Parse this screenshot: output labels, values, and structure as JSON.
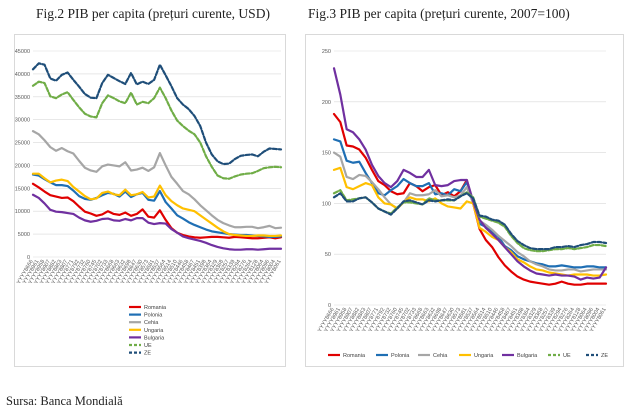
{
  "captions": {
    "fig2": "Fig.2 PIB per capita (prețuri curente, USD)",
    "fig3": "Fig.3 PIB per capita (prețuri curente, 2007=100)"
  },
  "source": "Sursa: Banca Mondială",
  "colors": {
    "Romania": "#e00000",
    "Polonia": "#1f6fb4",
    "Cehia": "#a6a6a6",
    "Ungaria": "#ffc000",
    "Bulgaria": "#7030a0",
    "UE": "#70ad47",
    "ZE": "#1f4e79"
  },
  "chart_data": [
    {
      "type": "line",
      "title": "Fig.2 PIB per capita (prețuri curente, USD)",
      "ylim": [
        0,
        45000
      ],
      "yticks": [
        "0",
        "5000",
        "10000",
        "15000",
        "20000",
        "25000",
        "30000",
        "35000",
        "40000",
        "45000"
      ],
      "x": [
        "YYYY8666",
        "YYYY8961",
        "YYYY8958",
        "YYYY8907",
        "YYYY8882",
        "YYYY8863",
        "YYYY8807",
        "YYYY8771",
        "YYYY8792",
        "YYYY8732",
        "YYYY8760",
        "YYYY8745",
        "YYYY8702",
        "YYYY8733",
        "YYYY8668",
        "YYYY8663",
        "YYYY8632",
        "YYYY8698",
        "YYYY8647",
        "YYYY8630",
        "YYYY8573",
        "YYYY8581",
        "YYYY8537",
        "YYYY8564",
        "YYYY8514",
        "YYYY8510",
        "YYYY8446",
        "YYYY8458",
        "YYYY8467",
        "YYYY8451",
        "YYYY8398",
        "YYYY8364",
        "YYYY8329",
        "YYYY8368",
        "YYYY8257",
        "YYYY8339",
        "YYYY8294",
        "YYYY8276",
        "YYYY8264",
        "YYYY8128",
        "YYYY8064",
        "YYYY8096",
        "YYYY8004",
        "YYYY8061"
      ],
      "series": [
        {
          "name": "Romania",
          "values": [
            16000,
            15200,
            14300,
            13500,
            13200,
            12900,
            13000,
            12200,
            11000,
            9900,
            9500,
            9000,
            9300,
            10000,
            9400,
            9200,
            9700,
            9000,
            9400,
            10400,
            8800,
            8600,
            10200,
            8100,
            6300,
            5300,
            4800,
            4500,
            4300,
            4200,
            4300,
            4400,
            4400,
            4300,
            4200,
            4400,
            4300,
            4200,
            4100,
            4100,
            4200,
            4300,
            4100,
            4300
          ]
        },
        {
          "name": "Polonia",
          "values": [
            18000,
            17800,
            17000,
            16300,
            15700,
            15700,
            15500,
            14500,
            13300,
            12700,
            12500,
            12900,
            13500,
            14000,
            13800,
            13200,
            14300,
            13100,
            13700,
            14000,
            12500,
            12300,
            14400,
            12000,
            10600,
            9100,
            8400,
            7600,
            7000,
            6500,
            6000,
            5600,
            5400,
            5200,
            5000,
            4900,
            4800,
            4800,
            4700,
            4600,
            4500,
            4400,
            4400,
            4500
          ]
        },
        {
          "name": "Cehia",
          "values": [
            27500,
            26800,
            25500,
            24000,
            23200,
            23800,
            23100,
            22600,
            21000,
            19500,
            18900,
            18600,
            19800,
            20200,
            20000,
            19800,
            20700,
            18900,
            19100,
            19500,
            18800,
            19600,
            22700,
            20000,
            17500,
            16000,
            14400,
            13700,
            12600,
            11300,
            10200,
            9100,
            8100,
            7400,
            6900,
            6500,
            6500,
            6600,
            6600,
            6300,
            6500,
            6800,
            6300,
            6400
          ]
        },
        {
          "name": "Ungaria",
          "values": [
            18200,
            18200,
            17200,
            16300,
            16700,
            16900,
            16600,
            15300,
            14300,
            13300,
            12600,
            12800,
            14000,
            14300,
            13700,
            13500,
            14700,
            13500,
            13700,
            14200,
            13000,
            13200,
            15600,
            13500,
            12200,
            11300,
            10600,
            10300,
            10000,
            9100,
            8200,
            7300,
            6400,
            5600,
            5000,
            4800,
            4700,
            4600,
            4600,
            4700,
            4700,
            4600,
            4600,
            4700
          ]
        },
        {
          "name": "Bulgaria",
          "values": [
            13600,
            12900,
            11700,
            10300,
            9900,
            9800,
            9600,
            9400,
            8600,
            8000,
            7700,
            7900,
            8300,
            8400,
            8000,
            7900,
            8300,
            8000,
            8500,
            8500,
            7500,
            7200,
            7400,
            7300,
            6100,
            5300,
            4500,
            4100,
            3800,
            3500,
            3100,
            2600,
            2200,
            1900,
            1700,
            1600,
            1600,
            1700,
            1700,
            1600,
            1700,
            1800,
            1800,
            1800
          ]
        },
        {
          "name": "UE",
          "values": [
            37400,
            38300,
            38000,
            35100,
            34700,
            35500,
            36000,
            34300,
            32700,
            31300,
            30700,
            30500,
            33600,
            35300,
            34700,
            34000,
            33600,
            35900,
            33300,
            33900,
            33600,
            34700,
            37000,
            34700,
            32000,
            29800,
            28600,
            27600,
            26800,
            25000,
            22000,
            19700,
            17800,
            17200,
            17100,
            17600,
            18000,
            18200,
            18300,
            18800,
            19400,
            19600,
            19700,
            19600
          ]
        },
        {
          "name": "ZE",
          "values": [
            41000,
            42300,
            42000,
            39000,
            38500,
            39800,
            40300,
            38700,
            37200,
            35600,
            34800,
            34700,
            38000,
            39800,
            39100,
            38400,
            37800,
            40200,
            37700,
            38300,
            37800,
            38700,
            42000,
            39700,
            37300,
            34700,
            33300,
            32300,
            30800,
            28600,
            25000,
            22400,
            20900,
            20300,
            20400,
            21400,
            22100,
            22300,
            22400,
            22000,
            23000,
            23700,
            23600,
            23500
          ]
        }
      ],
      "legend": [
        "Romania",
        "Polonia",
        "Cehia",
        "Ungaria",
        "Bulgaria",
        "UE",
        "ZE"
      ],
      "legend_position": "bottom"
    },
    {
      "type": "line",
      "title": "Fig.3 PIB per capita (prețuri curente, 2007=100)",
      "ylim": [
        0,
        250
      ],
      "yticks": [
        "0",
        "50",
        "100",
        "150",
        "200",
        "250"
      ],
      "x": [
        "YYYY8666",
        "YYYY8961",
        "YYYY8958",
        "YYYY8907",
        "YYYY8882",
        "YYYY8863",
        "YYYY8807",
        "YYYY8771",
        "YYYY8792",
        "YYYY8732",
        "YYYY8760",
        "YYYY8745",
        "YYYY8702",
        "YYYY8733",
        "YYYY8668",
        "YYYY8663",
        "YYYY8632",
        "YYYY8698",
        "YYYY8647",
        "YYYY8630",
        "YYYY8573",
        "YYYY8581",
        "YYYY8537",
        "YYYY8564",
        "YYYY8514",
        "YYYY8510",
        "YYYY8446",
        "YYYY8458",
        "YYYY8467",
        "YYYY8451",
        "YYYY8398",
        "YYYY8364",
        "YYYY8329",
        "YYYY8368",
        "YYYY8257",
        "YYYY8339",
        "YYYY8294",
        "YYYY8276",
        "YYYY8264",
        "YYYY8128",
        "YYYY8064",
        "YYYY8096",
        "YYYY8004",
        "YYYY8061"
      ],
      "series": [
        {
          "name": "Romania",
          "values": [
            188,
            180,
            157,
            156,
            153,
            145,
            133,
            122,
            118,
            112,
            109,
            110,
            120,
            117,
            112,
            116,
            118,
            108,
            111,
            107,
            112,
            123,
            100,
            75,
            64,
            57,
            47,
            39,
            33,
            28,
            25,
            23,
            22,
            21,
            20,
            21,
            23,
            21,
            20,
            20,
            21,
            21,
            21,
            21
          ]
        },
        {
          "name": "Polonia",
          "values": [
            163,
            161,
            142,
            140,
            141,
            130,
            120,
            110,
            108,
            113,
            117,
            124,
            120,
            117,
            117,
            120,
            109,
            110,
            108,
            114,
            112,
            121,
            100,
            80,
            77,
            72,
            67,
            58,
            54,
            48,
            45,
            43,
            41,
            40,
            38,
            38,
            39,
            38,
            37,
            37,
            38,
            38,
            37,
            37
          ]
        },
        {
          "name": "Cehia",
          "values": [
            150,
            146,
            126,
            124,
            128,
            127,
            121,
            114,
            106,
            99,
            95,
            101,
            110,
            108,
            108,
            109,
            113,
            107,
            108,
            106,
            108,
            116,
            100,
            83,
            79,
            74,
            68,
            63,
            58,
            52,
            48,
            43,
            40,
            38,
            35,
            34,
            34,
            35,
            35,
            33,
            34,
            35,
            35,
            35
          ]
        },
        {
          "name": "Ungaria",
          "values": [
            133,
            135,
            116,
            114,
            117,
            120,
            118,
            106,
            100,
            99,
            95,
            101,
            106,
            104,
            104,
            102,
            105,
            100,
            97,
            96,
            95,
            102,
            100,
            76,
            72,
            67,
            64,
            57,
            52,
            45,
            42,
            38,
            35,
            34,
            32,
            31,
            30,
            29,
            30,
            30,
            30,
            29,
            29,
            30
          ]
        },
        {
          "name": "Bulgaria",
          "values": [
            233,
            207,
            173,
            170,
            163,
            153,
            138,
            127,
            120,
            116,
            122,
            133,
            130,
            126,
            126,
            133,
            118,
            117,
            118,
            122,
            123,
            123,
            102,
            84,
            76,
            70,
            64,
            57,
            50,
            43,
            38,
            34,
            31,
            30,
            29,
            30,
            29,
            29,
            28,
            25,
            27,
            26,
            27,
            37
          ]
        },
        {
          "name": "UE",
          "values": [
            110,
            113,
            103,
            104,
            105,
            106,
            101,
            95,
            92,
            90,
            96,
            101,
            101,
            100,
            99,
            105,
            103,
            103,
            103,
            103,
            107,
            111,
            106,
            87,
            85,
            83,
            81,
            77,
            68,
            61,
            56,
            54,
            53,
            53,
            54,
            55,
            55,
            56,
            55,
            56,
            57,
            59,
            59,
            58
          ]
        },
        {
          "name": "ZE",
          "values": [
            106,
            110,
            102,
            102,
            105,
            106,
            101,
            95,
            92,
            89,
            95,
            102,
            103,
            101,
            99,
            103,
            102,
            103,
            104,
            103,
            107,
            110,
            105,
            88,
            87,
            84,
            83,
            79,
            70,
            63,
            59,
            56,
            55,
            55,
            55,
            57,
            57,
            58,
            57,
            59,
            60,
            62,
            62,
            61
          ]
        }
      ],
      "legend": [
        "Romania",
        "Polonia",
        "Cehia",
        "Ungaria",
        "Bulgaria",
        "UE",
        "ZE"
      ],
      "legend_position": "bottom"
    }
  ]
}
